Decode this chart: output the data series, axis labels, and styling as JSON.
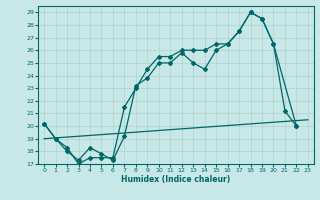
{
  "xlabel": "Humidex (Indice chaleur)",
  "background_color": "#c8e8e8",
  "grid_color": "#b0d0d0",
  "line_color": "#006666",
  "xlim": [
    -0.5,
    23.5
  ],
  "ylim": [
    17,
    29.5
  ],
  "xticks": [
    0,
    1,
    2,
    3,
    4,
    5,
    6,
    7,
    8,
    9,
    10,
    11,
    12,
    13,
    14,
    15,
    16,
    17,
    18,
    19,
    20,
    21,
    22,
    23
  ],
  "yticks": [
    17,
    18,
    19,
    20,
    21,
    22,
    23,
    24,
    25,
    26,
    27,
    28,
    29
  ],
  "line1_x": [
    0,
    23
  ],
  "line1_y": [
    19.0,
    20.5
  ],
  "line2_x": [
    0,
    1,
    2,
    3,
    4,
    5,
    6,
    7,
    8,
    9,
    10,
    11,
    12,
    13,
    14,
    15,
    16,
    17,
    18,
    19,
    20,
    21,
    22
  ],
  "line2_y": [
    20.2,
    19.0,
    18.0,
    17.3,
    18.3,
    17.8,
    17.3,
    19.2,
    23.2,
    23.8,
    25.0,
    25.0,
    25.8,
    25.0,
    24.5,
    26.0,
    26.5,
    27.5,
    29.0,
    28.5,
    26.5,
    21.2,
    20.0
  ],
  "line3_x": [
    0,
    1,
    2,
    3,
    4,
    5,
    6,
    7,
    8,
    9,
    10,
    11,
    12,
    13,
    14,
    15,
    16,
    17,
    18,
    19,
    20,
    22
  ],
  "line3_y": [
    20.2,
    19.0,
    18.3,
    17.0,
    17.5,
    17.5,
    17.5,
    21.5,
    23.0,
    24.5,
    25.5,
    25.5,
    26.0,
    26.0,
    26.0,
    26.5,
    26.5,
    27.5,
    29.0,
    28.5,
    26.5,
    20.0
  ]
}
